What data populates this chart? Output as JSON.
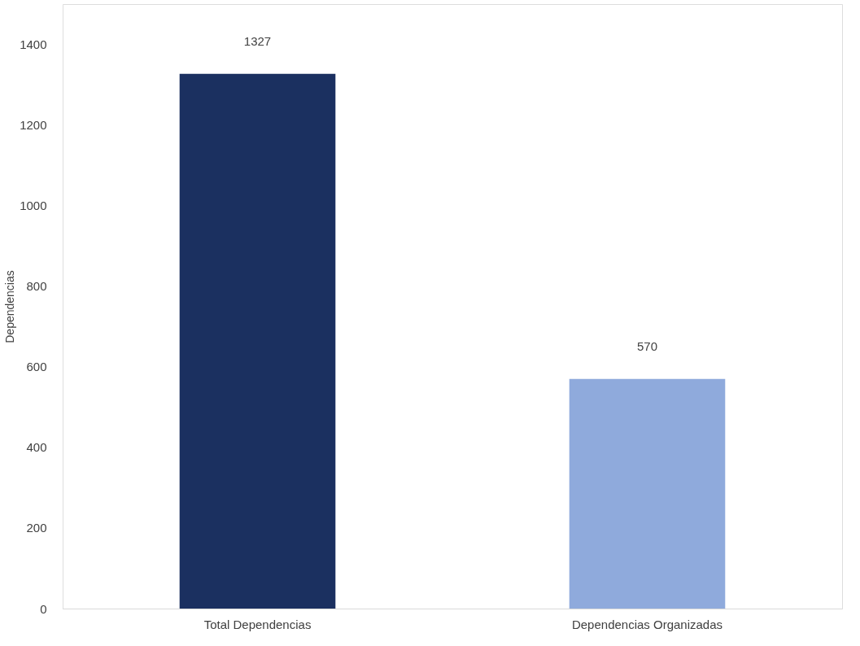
{
  "chart_data": {
    "type": "bar",
    "ylabel": "Dependencias",
    "categories": [
      "Total Dependencias",
      "Dependencias Organizadas"
    ],
    "values": [
      1327,
      570
    ],
    "colors": [
      "#1b3060",
      "#8faadc"
    ],
    "ylim": [
      0,
      1500
    ],
    "yticks": [
      0,
      200,
      400,
      600,
      800,
      1000,
      1200,
      1400
    ],
    "grid": false,
    "data_labels": true
  }
}
